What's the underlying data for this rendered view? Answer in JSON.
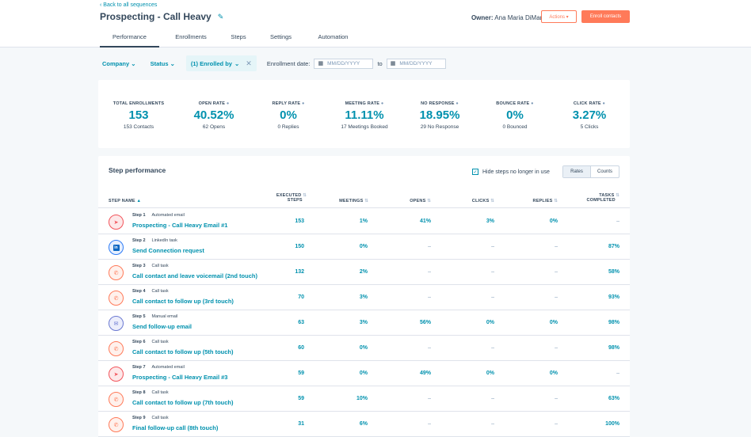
{
  "header": {
    "back_link": "‹ Back to all sequences",
    "title": "Prospecting - Call Heavy",
    "owner_label": "Owner:",
    "owner_name": "Ana Maria DiMarino",
    "actions_label": "Actions ▾",
    "enroll_label": "Enroll contacts"
  },
  "tabs": [
    {
      "label": "Performance"
    },
    {
      "label": "Enrollments"
    },
    {
      "label": "Steps"
    },
    {
      "label": "Settings"
    },
    {
      "label": "Automation"
    }
  ],
  "filters": {
    "company": "Company",
    "status": "Status",
    "enrolled_by": "(1) Enrolled by",
    "enrollment_date_label": "Enrollment date:",
    "date_placeholder": "MM/DD/YYYY",
    "to_label": "to"
  },
  "metrics": [
    {
      "label": "TOTAL ENROLLMENTS",
      "value": "153",
      "sub": "153 Contacts",
      "info": false
    },
    {
      "label": "OPEN RATE",
      "value": "40.52%",
      "sub": "62 Opens",
      "info": true
    },
    {
      "label": "REPLY RATE",
      "value": "0%",
      "sub": "0 Replies",
      "info": true
    },
    {
      "label": "MEETING RATE",
      "value": "11.11%",
      "sub": "17 Meetings Booked",
      "info": true
    },
    {
      "label": "NO RESPONSE",
      "value": "18.95%",
      "sub": "29 No Response",
      "info": true
    },
    {
      "label": "BOUNCE RATE",
      "value": "0%",
      "sub": "0 Bounced",
      "info": true
    },
    {
      "label": "CLICK RATE",
      "value": "3.27%",
      "sub": "5 Clicks",
      "info": true
    }
  ],
  "step_performance": {
    "title": "Step performance",
    "hide_label": "Hide steps no longer in use",
    "toggle_rates": "Rates",
    "toggle_counts": "Counts",
    "columns": {
      "step_name": "STEP NAME",
      "executed_1": "EXECUTED",
      "executed_2": "STEPS",
      "meetings": "MEETINGS",
      "opens": "OPENS",
      "clicks": "CLICKS",
      "replies": "REPLIES",
      "tasks_1": "TASKS",
      "tasks_2": "COMPLETED"
    },
    "rows": [
      {
        "step": "Step 1",
        "type": "Automated email",
        "icon": "send-icon",
        "name": "Prospecting - Call Heavy Email #1",
        "executed": "153",
        "meetings": "1%",
        "opens": "41%",
        "clicks": "3%",
        "replies": "0%",
        "tasks": "–"
      },
      {
        "step": "Step 2",
        "type": "LinkedIn task",
        "icon": "linkedin-icon",
        "name": "Send Connection request",
        "executed": "150",
        "meetings": "0%",
        "opens": "–",
        "clicks": "–",
        "replies": "–",
        "tasks": "87%"
      },
      {
        "step": "Step 3",
        "type": "Call task",
        "icon": "phone-icon",
        "name": "Call contact and leave voicemail (2nd touch)",
        "executed": "132",
        "meetings": "2%",
        "opens": "–",
        "clicks": "–",
        "replies": "–",
        "tasks": "58%"
      },
      {
        "step": "Step 4",
        "type": "Call task",
        "icon": "phone-icon",
        "name": "Call contact to follow up (3rd touch)",
        "executed": "70",
        "meetings": "3%",
        "opens": "–",
        "clicks": "–",
        "replies": "–",
        "tasks": "93%"
      },
      {
        "step": "Step 5",
        "type": "Manual email",
        "icon": "envelope-icon",
        "name": "Send follow-up email",
        "executed": "63",
        "meetings": "3%",
        "opens": "56%",
        "clicks": "0%",
        "replies": "0%",
        "tasks": "98%"
      },
      {
        "step": "Step 6",
        "type": "Call task",
        "icon": "phone-icon",
        "name": "Call contact to follow up (5th touch)",
        "executed": "60",
        "meetings": "0%",
        "opens": "–",
        "clicks": "–",
        "replies": "–",
        "tasks": "98%"
      },
      {
        "step": "Step 7",
        "type": "Automated email",
        "icon": "send-icon",
        "name": "Prospecting - Call Heavy Email #3",
        "executed": "59",
        "meetings": "0%",
        "opens": "49%",
        "clicks": "0%",
        "replies": "0%",
        "tasks": "–"
      },
      {
        "step": "Step 8",
        "type": "Call task",
        "icon": "phone-icon",
        "name": "Call contact to follow up (7th touch)",
        "executed": "59",
        "meetings": "10%",
        "opens": "–",
        "clicks": "–",
        "replies": "–",
        "tasks": "63%"
      },
      {
        "step": "Step 9",
        "type": "Call task",
        "icon": "phone-icon",
        "name": "Final follow-up call (8th touch)",
        "executed": "31",
        "meetings": "6%",
        "opens": "–",
        "clicks": "–",
        "replies": "–",
        "tasks": "100%"
      }
    ]
  }
}
